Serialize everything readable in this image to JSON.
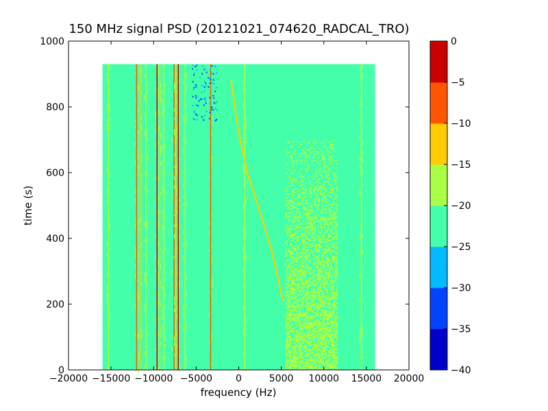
{
  "chart_data": {
    "type": "heatmap",
    "title": "150 MHz signal PSD (20121021_074620_RADCAL_TRO)",
    "xlabel": "frequency (Hz)",
    "ylabel": "time (s)",
    "xlim": [
      -20000,
      20000
    ],
    "ylim": [
      0,
      1000
    ],
    "x_ticks": [
      -20000,
      -15000,
      -10000,
      -5000,
      0,
      5000,
      10000,
      15000,
      20000
    ],
    "x_tick_labels": [
      "−20000",
      "−15000",
      "−10000",
      "−5000",
      "0",
      "5000",
      "10000",
      "15000",
      "20000"
    ],
    "y_ticks": [
      0,
      200,
      400,
      600,
      800,
      1000
    ],
    "y_tick_labels": [
      "0",
      "200",
      "400",
      "600",
      "800",
      "1000"
    ],
    "grid": false,
    "data_extent": {
      "x": [
        -16000,
        16000
      ],
      "y": [
        0,
        930
      ]
    },
    "background_level": -22.5,
    "colorbar": {
      "levels": [
        -40,
        -35,
        -30,
        -25,
        -20,
        -15,
        -10,
        -5,
        0
      ],
      "tick_labels": [
        "−40",
        "−35",
        "−30",
        "−25",
        "−20",
        "−15",
        "−10",
        "−5",
        "0"
      ],
      "colors": [
        "#0000cc",
        "#0044ff",
        "#00bbff",
        "#44ffaa",
        "#aaff44",
        "#ffcc00",
        "#ff5500",
        "#cc0000"
      ]
    },
    "features": [
      {
        "type": "vertical_line",
        "x": -15300,
        "y": [
          0,
          930
        ],
        "level": -17.5
      },
      {
        "type": "vertical_line",
        "x": -12000,
        "y": [
          0,
          930
        ],
        "level": -7.5
      },
      {
        "type": "vertical_line",
        "x": -11600,
        "y": [
          0,
          930
        ],
        "level": -12.5
      },
      {
        "type": "vertical_line",
        "x": -10900,
        "y": [
          0,
          930
        ],
        "level": -17.5
      },
      {
        "type": "vertical_line",
        "x": -9600,
        "y": [
          0,
          930
        ],
        "level": -2.5
      },
      {
        "type": "vertical_line",
        "x": -9300,
        "y": [
          0,
          930
        ],
        "level": -12.5
      },
      {
        "type": "vertical_line",
        "x": -8800,
        "y": [
          0,
          930
        ],
        "level": -17.5
      },
      {
        "type": "vertical_line",
        "x": -7600,
        "y": [
          0,
          930
        ],
        "level": -7.5
      },
      {
        "type": "vertical_line",
        "x": -7400,
        "y": [
          0,
          930
        ],
        "level": -12.5
      },
      {
        "type": "vertical_line",
        "x": -7100,
        "y": [
          0,
          930
        ],
        "level": -2.5
      },
      {
        "type": "vertical_line",
        "x": -6300,
        "y": [
          0,
          930
        ],
        "level": -17.5
      },
      {
        "type": "vertical_line",
        "x": -3300,
        "y": [
          0,
          930
        ],
        "level": -7.5
      },
      {
        "type": "vertical_line",
        "x": 700,
        "y": [
          0,
          930
        ],
        "level": -17.5
      },
      {
        "type": "vertical_line",
        "x": 14400,
        "y": [
          0,
          930
        ],
        "level": -17.5
      },
      {
        "type": "drift_curve",
        "points": [
          [
            -900,
            880
          ],
          [
            0,
            720
          ],
          [
            1000,
            600
          ],
          [
            2500,
            480
          ],
          [
            3800,
            370
          ],
          [
            4600,
            280
          ],
          [
            5200,
            210
          ]
        ],
        "level": -12.5
      },
      {
        "type": "noise_band",
        "x": [
          5500,
          11500
        ],
        "y": [
          0,
          700
        ],
        "level": -17.5
      },
      {
        "type": "noise_patch",
        "x": [
          -5500,
          -2600
        ],
        "y": [
          760,
          930
        ],
        "level": -27.5
      }
    ]
  }
}
